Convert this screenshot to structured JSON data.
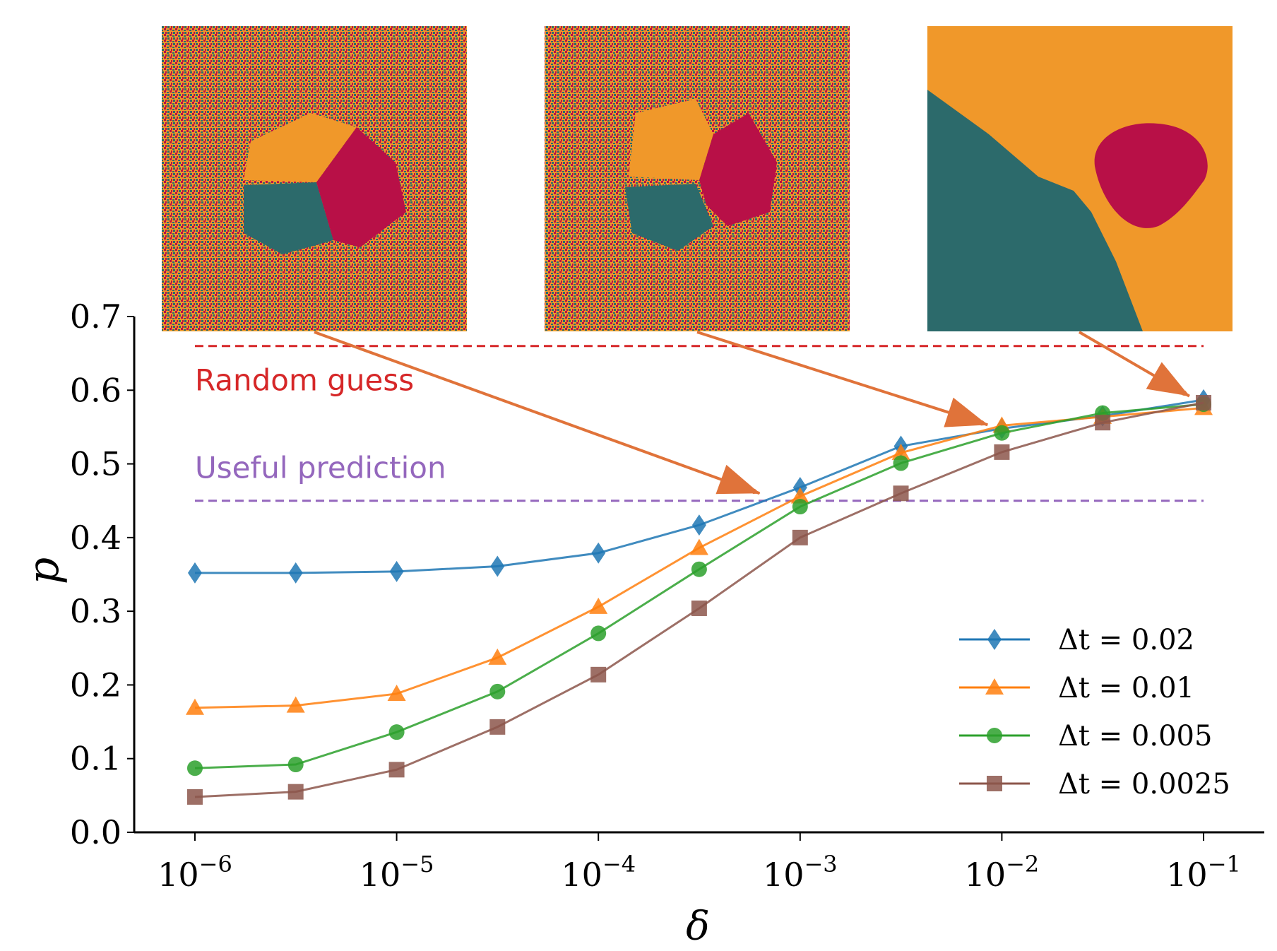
{
  "chart_data": {
    "type": "line",
    "title": "",
    "xlabel": "δ",
    "ylabel": "p",
    "xscale": "log",
    "xlim": [
      5e-07,
      0.2
    ],
    "ylim": [
      0,
      0.7
    ],
    "grid": false,
    "legend_position": "lower-right",
    "x": [
      1e-06,
      3.16e-06,
      1e-05,
      3.16e-05,
      0.0001,
      0.000316,
      0.001,
      0.00316,
      0.01,
      0.0316,
      0.1
    ],
    "x_ticks": [
      1e-06,
      1e-05,
      0.0001,
      0.001,
      0.01,
      0.1
    ],
    "x_tick_labels": [
      {
        "base": "10",
        "exp": "−6"
      },
      {
        "base": "10",
        "exp": "−5"
      },
      {
        "base": "10",
        "exp": "−4"
      },
      {
        "base": "10",
        "exp": "−3"
      },
      {
        "base": "10",
        "exp": "−2"
      },
      {
        "base": "10",
        "exp": "−1"
      }
    ],
    "y_ticks": [
      0.0,
      0.1,
      0.2,
      0.3,
      0.4,
      0.5,
      0.6,
      0.7
    ],
    "y_tick_labels": [
      "0.0",
      "0.1",
      "0.2",
      "0.3",
      "0.4",
      "0.5",
      "0.6",
      "0.7"
    ],
    "series": [
      {
        "name": "Δt = 0.02",
        "color": "#1f77b4",
        "marker": "diamond",
        "values": [
          0.352,
          0.352,
          0.354,
          0.361,
          0.379,
          0.417,
          0.468,
          0.524,
          0.548,
          0.565,
          0.587
        ]
      },
      {
        "name": "Δt = 0.01",
        "color": "#ff7f0e",
        "marker": "triangle",
        "values": [
          0.169,
          0.172,
          0.188,
          0.237,
          0.306,
          0.386,
          0.456,
          0.515,
          0.552,
          0.564,
          0.576
        ]
      },
      {
        "name": "Δt = 0.005",
        "color": "#2ca02c",
        "marker": "circle",
        "values": [
          0.087,
          0.092,
          0.136,
          0.191,
          0.27,
          0.357,
          0.442,
          0.501,
          0.542,
          0.569,
          0.581
        ]
      },
      {
        "name": "Δt = 0.0025",
        "color": "#8c564b",
        "marker": "square",
        "values": [
          0.048,
          0.055,
          0.085,
          0.143,
          0.214,
          0.304,
          0.4,
          0.46,
          0.516,
          0.556,
          0.583
        ]
      }
    ],
    "reference_lines": [
      {
        "label": "Random guess",
        "y": 0.66,
        "color": "#d62728",
        "style": "dashed"
      },
      {
        "label": "Useful prediction",
        "y": 0.45,
        "color": "#9467bd",
        "style": "dashed"
      }
    ],
    "inset_images": [
      {
        "content": "fractal basin map",
        "arrow_to": {
          "x": 0.00063,
          "y": 0.46
        }
      },
      {
        "content": "fractal basin map",
        "arrow_to": {
          "x": 0.0085,
          "y": 0.553
        }
      },
      {
        "content": "smooth basin map",
        "arrow_to": {
          "x": 0.085,
          "y": 0.592
        }
      }
    ],
    "colors": {
      "basin_orange": "#f0982a",
      "basin_teal": "#2c6a6b",
      "basin_red": "#b81047",
      "arrow": "#e0733a"
    }
  }
}
